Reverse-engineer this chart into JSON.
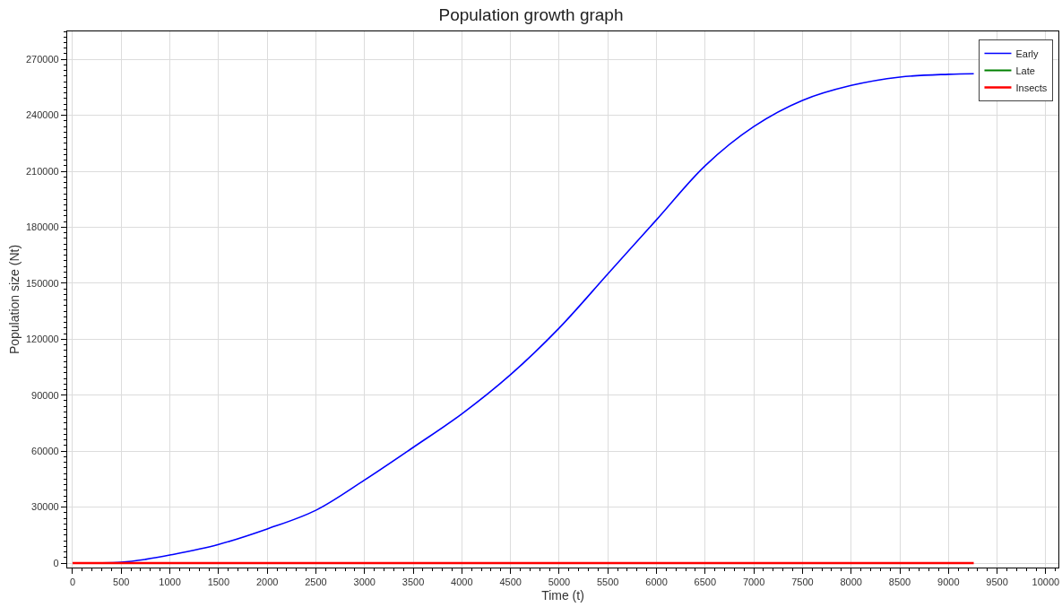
{
  "chart_data": {
    "type": "line",
    "title": "Population growth graph",
    "xlabel": "Time (t)",
    "ylabel": "Population size (Nt)",
    "x": [
      0,
      500,
      750,
      1000,
      1500,
      2000,
      2500,
      3000,
      3500,
      4000,
      4500,
      5000,
      5500,
      6000,
      6500,
      7000,
      7500,
      8000,
      8500,
      9000,
      9260
    ],
    "series": [
      {
        "name": "Early",
        "color": "#0000ff",
        "values": [
          0,
          500,
          2000,
          4300,
          10000,
          18300,
          28300,
          44500,
          62000,
          80000,
          101000,
          126000,
          155000,
          184000,
          213000,
          234000,
          248000,
          256000,
          260500,
          262000,
          262300
        ]
      },
      {
        "name": "Late",
        "color": "#008000",
        "values": [
          null,
          null,
          null,
          null,
          null,
          null,
          null,
          null,
          null,
          null,
          null,
          null,
          null,
          null,
          null,
          null,
          null,
          null,
          null,
          null,
          null
        ]
      },
      {
        "name": "Insects",
        "color": "#ff0000",
        "x": [
          0,
          9260
        ],
        "values": [
          0,
          0
        ]
      }
    ],
    "xlim": [
      -55,
      10130
    ],
    "ylim": [
      -2400,
      285000
    ],
    "xticks": [
      0,
      500,
      1000,
      1500,
      2000,
      2500,
      3000,
      3500,
      4000,
      4500,
      5000,
      5500,
      6000,
      6500,
      7000,
      7500,
      8000,
      8500,
      9000,
      9500,
      10000
    ],
    "yticks": [
      0,
      30000,
      60000,
      90000,
      120000,
      150000,
      180000,
      210000,
      240000,
      270000
    ],
    "grid": true,
    "legend": "top right",
    "marker": "none",
    "line_style": "solid"
  }
}
